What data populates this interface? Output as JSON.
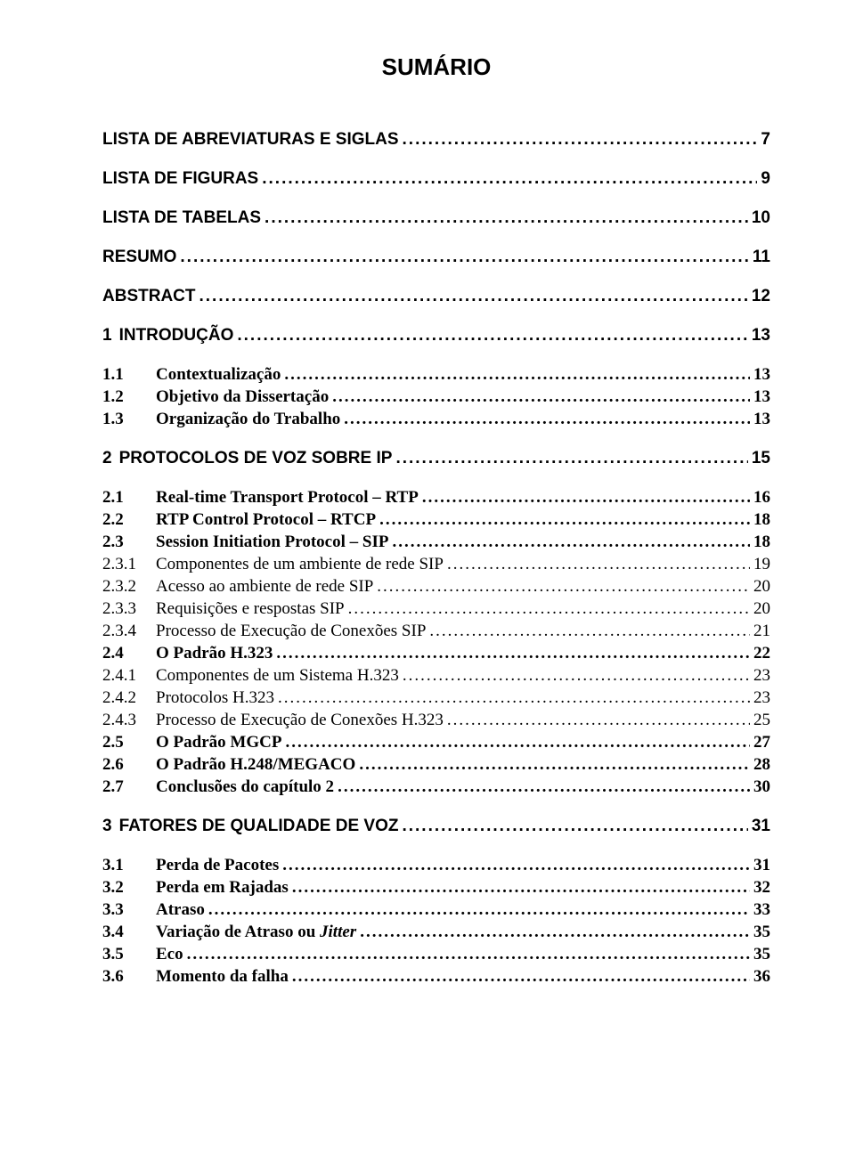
{
  "title": "SUMÁRIO",
  "frontmatter": [
    {
      "label": "LISTA DE ABREVIATURAS E SIGLAS",
      "page": "7"
    },
    {
      "label": "LISTA DE FIGURAS",
      "page": "9"
    },
    {
      "label": "LISTA DE TABELAS",
      "page": "10"
    },
    {
      "label": "RESUMO",
      "page": "11"
    },
    {
      "label": "ABSTRACT",
      "page": "12"
    }
  ],
  "ch1": {
    "heading": {
      "num": "1",
      "label": "INTRODUÇÃO",
      "page": "13"
    },
    "items": [
      {
        "num": "1.1",
        "label": "Contextualização",
        "page": "13"
      },
      {
        "num": "1.2",
        "label": "Objetivo da Dissertação",
        "page": "13"
      },
      {
        "num": "1.3",
        "label": "Organização do Trabalho",
        "page": "13"
      }
    ]
  },
  "ch2": {
    "heading": {
      "num": "2",
      "label": "PROTOCOLOS DE VOZ SOBRE IP",
      "page": "15"
    },
    "items": [
      {
        "num": "2.1",
        "label": "Real-time Transport Protocol – RTP",
        "page": "16",
        "bold": true
      },
      {
        "num": "2.2",
        "label": "RTP Control Protocol – RTCP",
        "page": "18",
        "bold": true
      },
      {
        "num": "2.3",
        "label": "Session Initiation Protocol – SIP",
        "page": "18",
        "bold": true
      },
      {
        "num": "2.3.1",
        "label": "Componentes de um ambiente de rede SIP",
        "page": "19",
        "bold": false
      },
      {
        "num": "2.3.2",
        "label": "Acesso ao ambiente de rede SIP",
        "page": "20",
        "bold": false
      },
      {
        "num": "2.3.3",
        "label": "Requisições e respostas SIP",
        "page": "20",
        "bold": false
      },
      {
        "num": "2.3.4",
        "label": "Processo de Execução de Conexões SIP",
        "page": "21",
        "bold": false
      },
      {
        "num": "2.4",
        "label": "O Padrão H.323",
        "page": "22",
        "bold": true
      },
      {
        "num": "2.4.1",
        "label": "Componentes de um Sistema H.323",
        "page": "23",
        "bold": false
      },
      {
        "num": "2.4.2",
        "label": "Protocolos H.323",
        "page": "23",
        "bold": false
      },
      {
        "num": "2.4.3",
        "label": "Processo de Execução de Conexões H.323",
        "page": "25",
        "bold": false
      },
      {
        "num": "2.5",
        "label": "O Padrão MGCP",
        "page": "27",
        "bold": true
      },
      {
        "num": "2.6",
        "label": "O Padrão H.248/MEGACO",
        "page": "28",
        "bold": true
      },
      {
        "num": "2.7",
        "label": "Conclusões do capítulo 2",
        "page": "30",
        "bold": true
      }
    ]
  },
  "ch3": {
    "heading": {
      "num": "3",
      "label": "FATORES DE QUALIDADE DE VOZ",
      "page": "31"
    },
    "items": [
      {
        "num": "3.1",
        "label": "Perda de Pacotes",
        "page": "31"
      },
      {
        "num": "3.2",
        "label": "Perda em Rajadas",
        "page": "32"
      },
      {
        "num": "3.3",
        "label": "Atraso",
        "page": "33"
      },
      {
        "num": "3.4",
        "label_pre": "Variação de Atraso ou ",
        "label_it": "Jitter",
        "page": "35"
      },
      {
        "num": "3.5",
        "label": "Eco",
        "page": "35"
      },
      {
        "num": "3.6",
        "label": "Momento da falha",
        "page": "36"
      }
    ]
  }
}
